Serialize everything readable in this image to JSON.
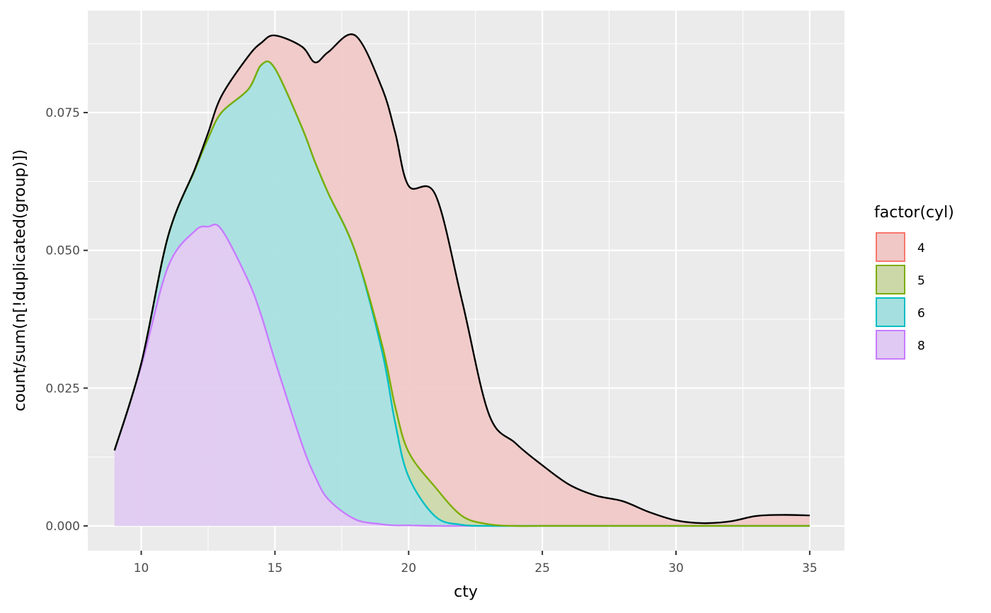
{
  "chart_data": {
    "type": "area",
    "stacked": true,
    "title": "",
    "xlabel": "cty",
    "ylabel": "count/sum(n[!duplicated(group)])",
    "xlim": [
      8,
      36.3
    ],
    "ylim": [
      -0.0045,
      0.0935
    ],
    "x_ticks": [
      10,
      15,
      20,
      25,
      30,
      35
    ],
    "x_tick_labels": [
      "10",
      "15",
      "20",
      "25",
      "30",
      "35"
    ],
    "y_ticks": [
      0,
      0.025,
      0.05,
      0.075
    ],
    "y_tick_labels": [
      "0.000",
      "0.025",
      "0.050",
      "0.075"
    ],
    "grid": true,
    "legend": {
      "title": "factor(cyl)",
      "placement": "right",
      "entries": [
        "4",
        "5",
        "6",
        "8"
      ]
    },
    "x": [
      9,
      10,
      11,
      12,
      12.5,
      13,
      14,
      14.5,
      15,
      16,
      16.5,
      17,
      18,
      19,
      19.5,
      20,
      21,
      22,
      23,
      24,
      25,
      26,
      27,
      28,
      29,
      30,
      31,
      32,
      33,
      34,
      35
    ],
    "series": [
      {
        "name": "8",
        "color": "#C77CFF",
        "fill": "#E0C9F2",
        "values": [
          0.0137,
          0.029,
          0.047,
          0.0535,
          0.0543,
          0.0538,
          0.0445,
          0.038,
          0.03,
          0.015,
          0.009,
          0.0048,
          0.0012,
          0.0003,
          0.0001,
          0.0001,
          0,
          0,
          0,
          0,
          0,
          0,
          0,
          0,
          0,
          0,
          0,
          0,
          0,
          0,
          0
        ]
      },
      {
        "name": "6",
        "color": "#00BFC4",
        "fill": "#A6DFDF",
        "values": [
          0,
          0.0005,
          0.0055,
          0.011,
          0.016,
          0.0212,
          0.0347,
          0.0457,
          0.053,
          0.0574,
          0.057,
          0.0555,
          0.0486,
          0.0315,
          0.0185,
          0.0088,
          0.0017,
          0.0002,
          0,
          0,
          0,
          0,
          0,
          0,
          0,
          0,
          0,
          0,
          0,
          0,
          0
        ]
      },
      {
        "name": "5",
        "color": "#7CAE00",
        "fill": "#CCD8A8",
        "values": [
          0,
          0,
          0,
          0,
          0,
          0,
          0,
          0,
          0,
          0,
          0,
          0,
          0,
          0.0012,
          0.003,
          0.0045,
          0.0053,
          0.0016,
          0.0003,
          0,
          0,
          0,
          0,
          0,
          0,
          0,
          0,
          0,
          0,
          0,
          0
        ]
      },
      {
        "name": "4",
        "color": "#F8766D",
        "fill": "#F0C8C6",
        "values": [
          0,
          0,
          0,
          0.0002,
          0.001,
          0.003,
          0.006,
          0.004,
          0.006,
          0.0146,
          0.0181,
          0.0257,
          0.0392,
          0.0465,
          0.0497,
          0.0483,
          0.0531,
          0.039,
          0.02,
          0.015,
          0.011,
          0.0075,
          0.0055,
          0.0045,
          0.0025,
          0.001,
          0.0005,
          0.0008,
          0.0018,
          0.002,
          0.0019
        ]
      }
    ]
  }
}
